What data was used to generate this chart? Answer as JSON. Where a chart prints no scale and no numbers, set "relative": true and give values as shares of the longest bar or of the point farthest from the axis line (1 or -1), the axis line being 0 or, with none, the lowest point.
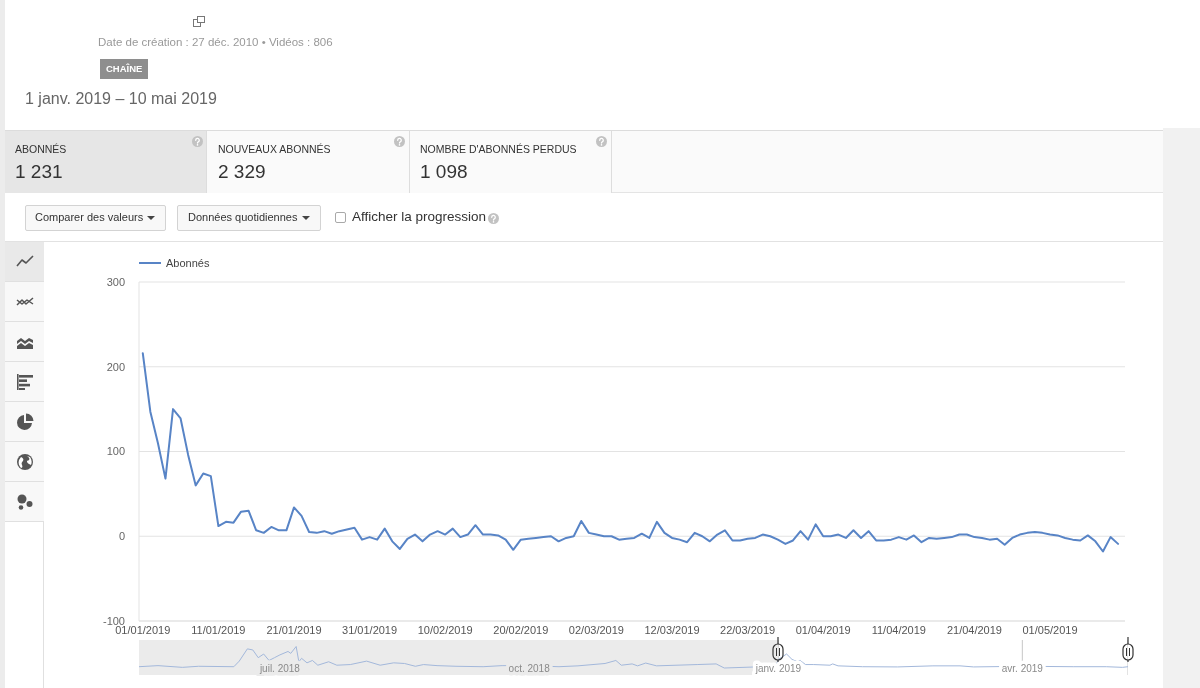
{
  "chart_data": [
    {
      "type": "line",
      "subtitle": "1 janv. 2019 – 10 mai 2019",
      "annotations": [
        "Date de création : 27 déc. 2010 • Vidéos : 806",
        "CHAÎNE",
        "ABONNÉS",
        "1 231",
        "NOUVEAUX ABONNÉS",
        "2 329",
        "NOMBRE D'ABONNÉS PERDUS",
        "1 098",
        "Comparer des valeurs",
        "Données quotidiennes",
        "Afficher la progression"
      ],
      "x": [
        "2019-01-01",
        "2019-01-02",
        "2019-01-03",
        "2019-01-04",
        "2019-01-05",
        "2019-01-06",
        "2019-01-07",
        "2019-01-08",
        "2019-01-09",
        "2019-01-10",
        "2019-01-11",
        "2019-01-12",
        "2019-01-13",
        "2019-01-14",
        "2019-01-15",
        "2019-01-16",
        "2019-01-17",
        "2019-01-18",
        "2019-01-19",
        "2019-01-20",
        "2019-01-21",
        "2019-01-22",
        "2019-01-23",
        "2019-01-24",
        "2019-01-25",
        "2019-01-26",
        "2019-01-27",
        "2019-01-28",
        "2019-01-29",
        "2019-01-30",
        "2019-01-31",
        "2019-02-01",
        "2019-02-02",
        "2019-02-03",
        "2019-02-04",
        "2019-02-05",
        "2019-02-06",
        "2019-02-07",
        "2019-02-08",
        "2019-02-09",
        "2019-02-10",
        "2019-02-11",
        "2019-02-12",
        "2019-02-13",
        "2019-02-14",
        "2019-02-15",
        "2019-02-16",
        "2019-02-17",
        "2019-02-18",
        "2019-02-19",
        "2019-02-20",
        "2019-02-21",
        "2019-02-22",
        "2019-02-23",
        "2019-02-24",
        "2019-02-25",
        "2019-02-26",
        "2019-02-27",
        "2019-02-28",
        "2019-03-01",
        "2019-03-02",
        "2019-03-03",
        "2019-03-04",
        "2019-03-05",
        "2019-03-06",
        "2019-03-07",
        "2019-03-08",
        "2019-03-09",
        "2019-03-10",
        "2019-03-11",
        "2019-03-12",
        "2019-03-13",
        "2019-03-14",
        "2019-03-15",
        "2019-03-16",
        "2019-03-17",
        "2019-03-18",
        "2019-03-19",
        "2019-03-20",
        "2019-03-21",
        "2019-03-22",
        "2019-03-23",
        "2019-03-24",
        "2019-03-25",
        "2019-03-26",
        "2019-03-27",
        "2019-03-28",
        "2019-03-29",
        "2019-03-30",
        "2019-03-31",
        "2019-04-01",
        "2019-04-02",
        "2019-04-03",
        "2019-04-04",
        "2019-04-05",
        "2019-04-06",
        "2019-04-07",
        "2019-04-08",
        "2019-04-09",
        "2019-04-10",
        "2019-04-11",
        "2019-04-12",
        "2019-04-13",
        "2019-04-14",
        "2019-04-15",
        "2019-04-16",
        "2019-04-17",
        "2019-04-18",
        "2019-04-19",
        "2019-04-20",
        "2019-04-21",
        "2019-04-22",
        "2019-04-23",
        "2019-04-24",
        "2019-04-25",
        "2019-04-26",
        "2019-04-27",
        "2019-04-28",
        "2019-04-29",
        "2019-04-30",
        "2019-05-01",
        "2019-05-02",
        "2019-05-03",
        "2019-05-04",
        "2019-05-05",
        "2019-05-06",
        "2019-05-07",
        "2019-05-08",
        "2019-05-09",
        "2019-05-10"
      ],
      "series": [
        {
          "name": "Abonnés",
          "color": "#5884c6",
          "values": [
            216,
            147,
            110,
            68,
            150,
            139,
            96,
            60,
            74,
            71,
            12,
            17,
            16,
            29,
            30,
            7,
            4,
            11,
            7,
            7,
            34,
            24,
            5,
            4,
            6,
            3,
            6,
            8,
            10,
            -4,
            -1,
            -4,
            9,
            -6,
            -15,
            -3,
            2,
            -6,
            2,
            6,
            2,
            9,
            -1,
            2,
            13,
            2,
            2,
            1,
            -4,
            -16,
            -4,
            -3,
            -2,
            -1,
            0,
            -6,
            -2,
            0,
            18,
            4,
            2,
            0,
            0,
            -4,
            -3,
            -2,
            3,
            -2,
            17,
            4,
            -2,
            -4,
            -7,
            4,
            0,
            -6,
            2,
            7,
            -5,
            -5,
            -3,
            -2,
            2,
            0,
            -4,
            -9,
            -5,
            6,
            -4,
            14,
            0,
            0,
            2,
            -2,
            7,
            -2,
            6,
            -5,
            -5,
            -4,
            -1,
            -4,
            1,
            -7,
            -2,
            -3,
            -2,
            -1,
            2,
            2,
            -1,
            -2,
            -4,
            -3,
            -10,
            -2,
            2,
            4,
            5,
            4,
            2,
            1,
            -2,
            -4,
            -5,
            1,
            -6,
            -18,
            -1,
            -9
          ]
        }
      ],
      "xlim": [
        "2018-12-31T12:00",
        "2019-05-10T22:00"
      ],
      "xticks": [
        {
          "value": "2019-01-01",
          "label": "01/01/2019"
        },
        {
          "value": "2019-01-11",
          "label": "11/01/2019"
        },
        {
          "value": "2019-01-21",
          "label": "21/01/2019"
        },
        {
          "value": "2019-01-31",
          "label": "31/01/2019"
        },
        {
          "value": "2019-02-10",
          "label": "10/02/2019"
        },
        {
          "value": "2019-02-20",
          "label": "20/02/2019"
        },
        {
          "value": "2019-03-02",
          "label": "02/03/2019"
        },
        {
          "value": "2019-03-12",
          "label": "12/03/2019"
        },
        {
          "value": "2019-03-22",
          "label": "22/03/2019"
        },
        {
          "value": "2019-04-01",
          "label": "01/04/2019"
        },
        {
          "value": "2019-04-11",
          "label": "11/04/2019"
        },
        {
          "value": "2019-04-21",
          "label": "21/04/2019"
        },
        {
          "value": "2019-05-01",
          "label": "01/05/2019"
        }
      ],
      "ylim": [
        -100,
        300
      ],
      "yticks": [
        -100,
        0,
        100,
        200,
        300
      ],
      "grid": "y",
      "legend": "top left"
    },
    {
      "type": "line",
      "relative": true,
      "x": [
        "2018-05-10",
        "2018-05-17",
        "2018-05-26",
        "2018-06-01",
        "2018-06-14",
        "2018-06-16",
        "2018-06-19",
        "2018-06-21",
        "2018-06-23",
        "2018-06-25",
        "2018-06-27",
        "2018-06-29",
        "2018-07-01",
        "2018-07-04",
        "2018-07-05",
        "2018-07-07",
        "2018-07-08",
        "2018-07-09",
        "2018-07-11",
        "2018-07-13",
        "2018-07-15",
        "2018-07-19",
        "2018-07-22",
        "2018-07-27",
        "2018-08-02",
        "2018-08-07",
        "2018-08-12",
        "2018-08-16",
        "2018-08-20",
        "2018-08-23",
        "2018-08-28",
        "2018-09-04",
        "2018-09-14",
        "2018-09-21",
        "2018-10-01",
        "2018-10-12",
        "2018-10-19",
        "2018-10-29",
        "2018-11-02",
        "2018-11-04",
        "2018-11-08",
        "2018-11-10",
        "2018-11-13",
        "2018-11-17",
        "2018-12-02",
        "2018-12-09",
        "2018-12-12",
        "2018-12-31",
        "2019-01-01",
        "2019-01-04",
        "2019-01-06",
        "2019-01-08",
        "2019-01-09",
        "2019-01-11",
        "2019-01-14",
        "2019-01-20",
        "2019-01-21",
        "2019-01-23",
        "2019-02-01",
        "2019-02-14",
        "2019-02-27",
        "2019-03-09",
        "2019-03-14",
        "2019-04-01",
        "2019-04-20",
        "2019-05-02",
        "2019-05-08",
        "2019-05-10"
      ],
      "series": [
        {
          "color": "#a3b8db",
          "values": [
            0.06,
            0.11,
            0.03,
            0.08,
            0.06,
            0.32,
            0.89,
            0.84,
            0.48,
            0.65,
            0.35,
            0.48,
            0.61,
            0.77,
            0.68,
            1,
            0.29,
            0.45,
            0.24,
            0.35,
            0.13,
            0.29,
            0.13,
            0.16,
            0.32,
            0.13,
            0.24,
            0.21,
            0.08,
            0.16,
            0.11,
            0.08,
            0.06,
            0.11,
            0.11,
            0.06,
            0.1,
            0.21,
            0.35,
            0.13,
            0.19,
            0.1,
            0.23,
            0.1,
            0.16,
            0.19,
            0,
            0.08,
            0.4,
            0.65,
            0.4,
            0.29,
            0.35,
            0.16,
            0.16,
            0.13,
            0.19,
            0.1,
            0.06,
            0.05,
            0.1,
            0.1,
            0.05,
            0.08,
            0.06,
            0.06,
            0.03,
            0.06
          ]
        }
      ],
      "xlim": [
        "2018-05-10",
        "2019-05-10"
      ],
      "xticks": [
        {
          "value": "2018-07-01",
          "label": "juil. 2018"
        },
        {
          "value": "2018-10-01",
          "label": "oct. 2018"
        },
        {
          "value": "2019-01-01",
          "label": "janv. 2019"
        },
        {
          "value": "2019-04-01",
          "label": "avr. 2019"
        }
      ],
      "grid": "x",
      "bands": [
        {
          "axis": "x",
          "from": "2018-05-10",
          "to": "2019-01-01",
          "color": "#ebebeb"
        }
      ]
    }
  ]
}
